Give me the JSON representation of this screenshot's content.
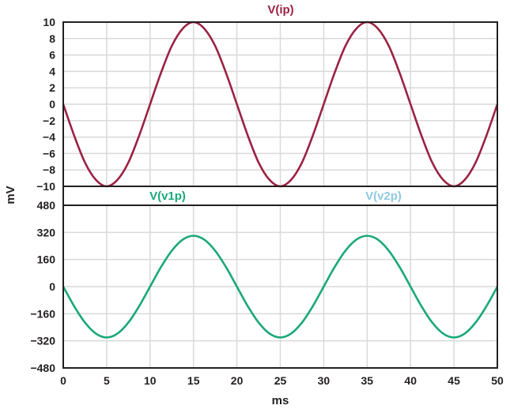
{
  "chart_data": {
    "type": "line",
    "ylabel": "mV",
    "xlabel": "ms",
    "x_ticks": [
      "0",
      "5",
      "10",
      "15",
      "20",
      "25",
      "30",
      "35",
      "40",
      "45",
      "50"
    ],
    "xlim": [
      0,
      50
    ],
    "grid": true,
    "panels": [
      {
        "ylim": [
          -10,
          10
        ],
        "y_ticks": [
          "10",
          "8",
          "6",
          "4",
          "2",
          "0",
          "−2",
          "−4",
          "−6",
          "−8",
          "−10"
        ],
        "series": [
          {
            "name": "V(ip)",
            "color": "#9b2242",
            "x": [
              0,
              1.25,
              2.5,
              3.75,
              5,
              6.25,
              7.5,
              8.75,
              10,
              11.25,
              12.5,
              13.75,
              15,
              16.25,
              17.5,
              18.75,
              20,
              21.25,
              22.5,
              23.75,
              25,
              26.25,
              27.5,
              28.75,
              30,
              31.25,
              32.5,
              33.75,
              35,
              36.25,
              37.5,
              38.75,
              40,
              41.25,
              42.5,
              43.75,
              45,
              46.25,
              47.5,
              48.75,
              50
            ],
            "y": [
              0,
              -3.8,
              -7.1,
              -9.2,
              -10,
              -9.2,
              -7.1,
              -3.8,
              0,
              3.8,
              7.1,
              9.2,
              10,
              9.2,
              7.1,
              3.8,
              0,
              -3.8,
              -7.1,
              -9.2,
              -10,
              -9.2,
              -7.1,
              -3.8,
              0,
              3.8,
              7.1,
              9.2,
              10,
              9.2,
              7.1,
              3.8,
              0,
              -3.8,
              -7.1,
              -9.2,
              -10,
              -9.2,
              -7.1,
              -3.8,
              0
            ]
          }
        ]
      },
      {
        "ylim": [
          -480,
          480
        ],
        "y_ticks": [
          "480",
          "320",
          "160",
          "0",
          "−160",
          "−320",
          "−480"
        ],
        "series": [
          {
            "name": "V(v1p)",
            "color": "#1aa879",
            "x": [
              0,
              1.25,
              2.5,
              3.75,
              5,
              6.25,
              7.5,
              8.75,
              10,
              11.25,
              12.5,
              13.75,
              15,
              16.25,
              17.5,
              18.75,
              20,
              21.25,
              22.5,
              23.75,
              25,
              26.25,
              27.5,
              28.75,
              30,
              31.25,
              32.5,
              33.75,
              35,
              36.25,
              37.5,
              38.75,
              40,
              41.25,
              42.5,
              43.75,
              45,
              46.25,
              47.5,
              48.75,
              50
            ],
            "y": [
              0,
              -115,
              -212,
              -277,
              -300,
              -277,
              -212,
              -115,
              0,
              115,
              212,
              277,
              300,
              277,
              212,
              115,
              0,
              -115,
              -212,
              -277,
              -300,
              -277,
              -212,
              -115,
              0,
              115,
              212,
              277,
              300,
              277,
              212,
              115,
              0,
              -115,
              -212,
              -277,
              -300,
              -277,
              -212,
              -115,
              0
            ]
          },
          {
            "name": "V(v2p)",
            "color": "#8fc9df",
            "x": [],
            "y": []
          }
        ]
      }
    ]
  }
}
